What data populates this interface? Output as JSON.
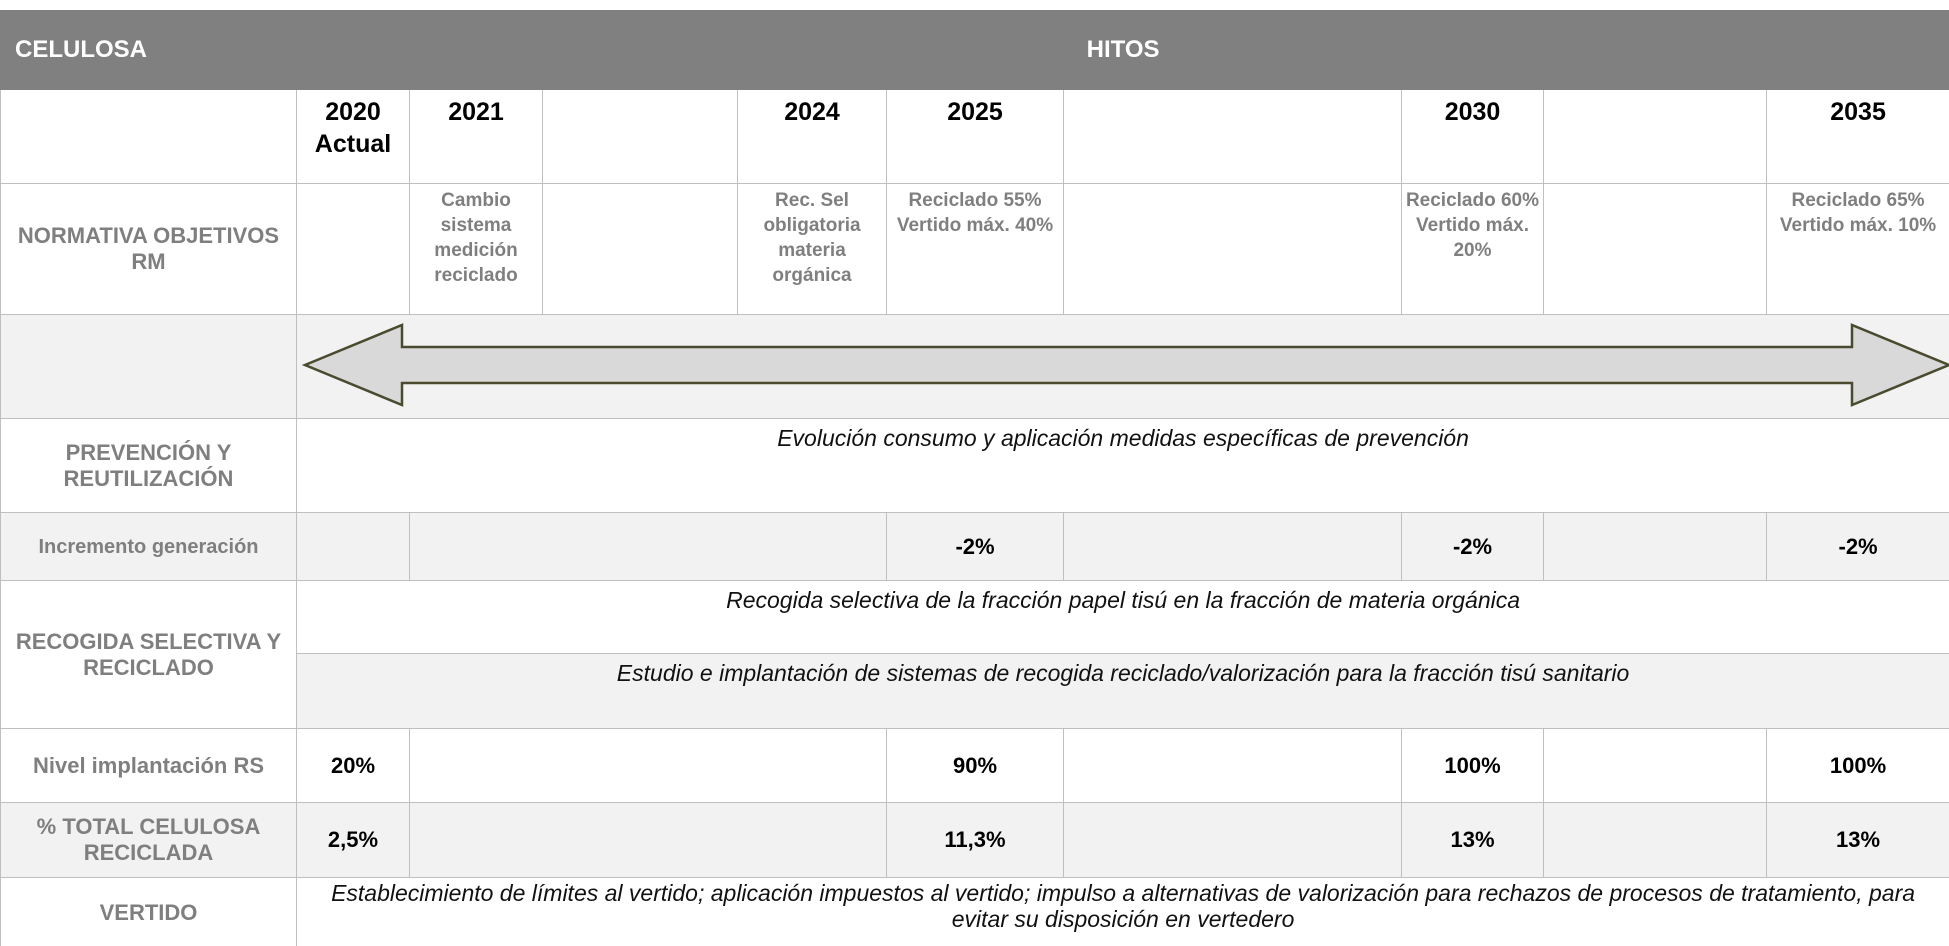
{
  "header": {
    "title": "CELULOSA",
    "hitos": "HITOS"
  },
  "years": {
    "y2020": "2020\nActual",
    "y2021": "2021",
    "y2024": "2024",
    "y2025": "2025",
    "y2030": "2030",
    "y2035": "2035"
  },
  "normativa": {
    "label": "NORMATIVA OBJETIVOS RM",
    "y2021": "Cambio sistema medición reciclado",
    "y2024": "Rec. Sel obligatoria materia orgánica",
    "y2025": "Reciclado 55% Vertido máx. 40%",
    "y2030": "Reciclado 60% Vertido máx. 20%",
    "y2035": "Reciclado 65% Vertido máx. 10%"
  },
  "prevencion": {
    "label": "PREVENCIÓN Y REUTILIZACIÓN",
    "text": "Evolución consumo y aplicación medidas específicas de prevención"
  },
  "incremento": {
    "label": "Incremento generación",
    "y2025": "-2%",
    "y2030": "-2%",
    "y2035": "-2%"
  },
  "recogida": {
    "label": "RECOGIDA SELECTIVA Y RECICLADO",
    "lines": [
      "Recogida selectiva de la fracción papel tisú en la fracción de materia orgánica",
      "Estudio e implantación de sistemas de recogida reciclado/valorización para la fracción tisú sanitario"
    ]
  },
  "nivel": {
    "label": "Nivel implantación RS",
    "y2020": "20%",
    "y2025": "90%",
    "y2030": "100%",
    "y2035": "100%"
  },
  "total": {
    "label": "% TOTAL CELULOSA RECICLADA",
    "y2020": "2,5%",
    "y2025": "11,3%",
    "y2030": "13%",
    "y2035": "13%"
  },
  "vertido": {
    "label": "VERTIDO",
    "text": "Establecimiento de límites al vertido; aplicación impuestos al vertido; impulso a alternativas de valorización para rechazos de procesos de tratamiento, para evitar su disposición en vertedero"
  }
}
